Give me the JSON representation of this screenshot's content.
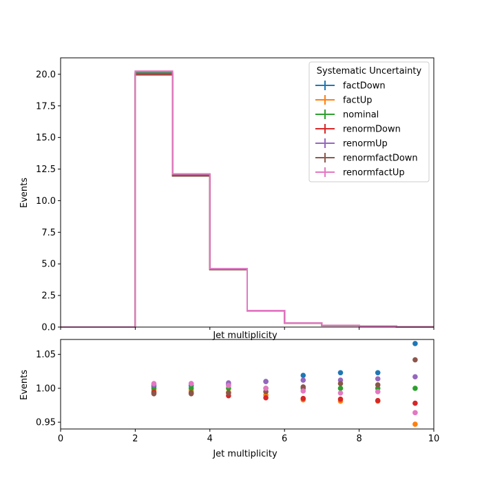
{
  "chart_data": [
    {
      "type": "line",
      "panel": "main",
      "ylabel": "Events",
      "xlabel": "Jet multiplicity",
      "xlim": [
        0,
        10
      ],
      "ylim": [
        0,
        21.3
      ],
      "bin_edges": [
        0,
        1,
        2,
        3,
        4,
        5,
        6,
        7,
        8,
        9,
        10
      ],
      "xticks": [],
      "yticks": [
        "0.0",
        "2.5",
        "5.0",
        "7.5",
        "10.0",
        "12.5",
        "15.0",
        "17.5",
        "20.0"
      ],
      "ytick_values": [
        0,
        2.5,
        5,
        7.5,
        10,
        12.5,
        15,
        17.5,
        20
      ],
      "legend": {
        "title": "Systematic Uncertainty",
        "placement": "top-right"
      },
      "series": [
        {
          "name": "factDown",
          "color": "#1f77b4",
          "values": [
            0,
            0,
            20.1,
            12.05,
            4.58,
            1.3,
            0.32,
            0.13,
            0.06,
            0.01
          ]
        },
        {
          "name": "factUp",
          "color": "#ff7f0e",
          "values": [
            0,
            0,
            20.1,
            12.05,
            4.58,
            1.3,
            0.32,
            0.13,
            0.06,
            0.01
          ]
        },
        {
          "name": "nominal",
          "color": "#2ca02c",
          "values": [
            0,
            0,
            20.1,
            12.05,
            4.58,
            1.3,
            0.32,
            0.13,
            0.06,
            0.01
          ]
        },
        {
          "name": "renormDown",
          "color": "#d62728",
          "values": [
            0,
            0,
            20.0,
            12.0,
            4.55,
            1.29,
            0.31,
            0.12,
            0.06,
            0.01
          ]
        },
        {
          "name": "renormUp",
          "color": "#9467bd",
          "values": [
            0,
            0,
            20.2,
            12.1,
            4.62,
            1.31,
            0.33,
            0.13,
            0.06,
            0.01
          ]
        },
        {
          "name": "renormfactDown",
          "color": "#8c564b",
          "values": [
            0,
            0,
            19.95,
            11.95,
            4.54,
            1.29,
            0.32,
            0.13,
            0.06,
            0.01
          ]
        },
        {
          "name": "renormfactUp",
          "color": "#e377c2",
          "values": [
            0,
            0,
            20.25,
            12.12,
            4.62,
            1.31,
            0.32,
            0.13,
            0.06,
            0.01
          ]
        }
      ]
    },
    {
      "type": "scatter",
      "panel": "ratio",
      "ylabel": "Events",
      "xlabel": "Jet multiplicity",
      "xlim": [
        0,
        10
      ],
      "ylim": [
        0.94,
        1.072
      ],
      "xticks": [
        "0",
        "2",
        "4",
        "6",
        "8",
        "10"
      ],
      "xtick_values": [
        0,
        2,
        4,
        6,
        8,
        10
      ],
      "yticks": [
        "0.95",
        "1.00",
        "1.05"
      ],
      "ytick_values": [
        0.95,
        1.0,
        1.05
      ],
      "x": [
        2.5,
        3.5,
        4.5,
        5.5,
        6.5,
        7.5,
        8.5,
        9.5
      ],
      "series": [
        {
          "name": "factDown",
          "color": "#1f77b4",
          "values": [
            1.003,
            1.004,
            1.006,
            1.01,
            1.019,
            1.023,
            1.023,
            1.066
          ]
        },
        {
          "name": "factUp",
          "color": "#ff7f0e",
          "values": [
            0.997,
            0.996,
            0.994,
            0.99,
            0.983,
            0.981,
            0.981,
            0.947
          ]
        },
        {
          "name": "nominal",
          "color": "#2ca02c",
          "values": [
            1.0,
            1.0,
            1.0,
            1.0,
            1.0,
            1.0,
            1.0,
            1.0
          ]
        },
        {
          "name": "renormDown",
          "color": "#d62728",
          "values": [
            0.994,
            0.993,
            0.989,
            0.986,
            0.985,
            0.984,
            0.982,
            0.978
          ]
        },
        {
          "name": "renormUp",
          "color": "#9467bd",
          "values": [
            1.005,
            1.007,
            1.008,
            1.01,
            1.012,
            1.012,
            1.014,
            1.017
          ]
        },
        {
          "name": "renormfactDown",
          "color": "#8c564b",
          "values": [
            0.992,
            0.992,
            0.993,
            0.995,
            1.002,
            1.007,
            1.005,
            1.042
          ]
        },
        {
          "name": "renormfactUp",
          "color": "#e377c2",
          "values": [
            1.007,
            1.007,
            1.004,
            1.0,
            0.996,
            0.993,
            0.995,
            0.964
          ]
        }
      ]
    }
  ]
}
